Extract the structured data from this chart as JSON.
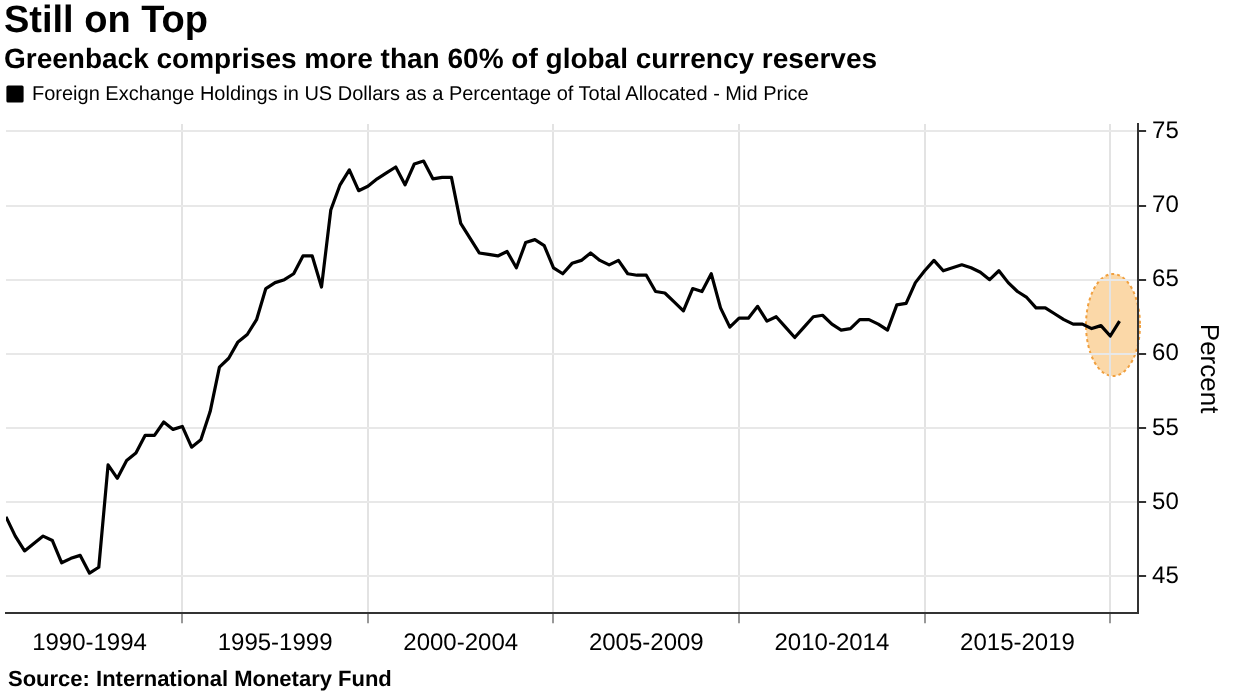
{
  "chart_data": {
    "type": "line",
    "title": "Still on Top",
    "subtitle": "Greenback comprises more than 60% of global currency reserves",
    "ylabel": "Percent",
    "annotations": [
      "Source: International Monetary Fund"
    ],
    "categories": [
      null,
      null,
      null,
      null,
      null,
      null,
      null,
      null,
      null,
      "1990-1994",
      null,
      null,
      null,
      null,
      null,
      null,
      null,
      null,
      null,
      null,
      null,
      null,
      null,
      null,
      null,
      null,
      null,
      null,
      null,
      "1995-1999",
      null,
      null,
      null,
      null,
      null,
      null,
      null,
      null,
      null,
      null,
      null,
      null,
      null,
      null,
      null,
      null,
      null,
      null,
      null,
      "2000-2004",
      null,
      null,
      null,
      null,
      null,
      null,
      null,
      null,
      null,
      null,
      null,
      null,
      null,
      null,
      null,
      null,
      null,
      null,
      null,
      "2005-2009",
      null,
      null,
      null,
      null,
      null,
      null,
      null,
      null,
      null,
      null,
      null,
      null,
      null,
      null,
      null,
      null,
      null,
      null,
      null,
      "2010-2014",
      null,
      null,
      null,
      null,
      null,
      null,
      null,
      null,
      null,
      null,
      null,
      null,
      null,
      null,
      null,
      null,
      null,
      null,
      null,
      "2015-2019",
      null,
      null,
      null,
      null,
      null,
      null,
      null,
      null,
      null,
      null,
      null,
      null,
      null
    ],
    "series": [
      {
        "name": "Foreign Exchange Holdings in US Dollars as a Percentage of Total Allocated - Mid Price",
        "color": "#000000",
        "values": [
          49.0,
          47.7,
          46.7,
          47.2,
          47.7,
          47.4,
          45.9,
          46.2,
          46.4,
          45.2,
          45.6,
          52.5,
          51.6,
          52.8,
          53.3,
          54.5,
          54.5,
          55.4,
          54.9,
          55.1,
          53.7,
          54.2,
          56.1,
          59.1,
          59.7,
          60.8,
          61.3,
          62.3,
          64.4,
          64.8,
          65.0,
          65.4,
          66.6,
          66.6,
          64.5,
          69.7,
          71.4,
          72.4,
          71.0,
          71.3,
          71.8,
          72.2,
          72.6,
          71.4,
          72.8,
          73.0,
          71.8,
          71.9,
          71.9,
          68.8,
          67.8,
          66.8,
          66.7,
          66.6,
          66.9,
          65.8,
          67.5,
          67.7,
          67.3,
          65.8,
          65.4,
          66.1,
          66.3,
          66.8,
          66.3,
          66.0,
          66.3,
          65.4,
          65.3,
          65.3,
          64.2,
          64.1,
          63.5,
          62.9,
          64.4,
          64.2,
          65.4,
          63.1,
          61.8,
          62.4,
          62.4,
          63.2,
          62.2,
          62.5,
          61.8,
          61.1,
          61.8,
          62.5,
          62.6,
          62.0,
          61.6,
          61.7,
          62.3,
          62.3,
          62.0,
          61.6,
          63.3,
          63.4,
          64.8,
          65.6,
          66.3,
          65.6,
          65.8,
          66.0,
          65.8,
          65.5,
          65.0,
          65.6,
          64.8,
          64.2,
          63.8,
          63.1,
          63.1,
          62.7,
          62.3,
          62.0,
          62.0,
          61.7,
          61.9,
          61.2,
          62.2,
          null,
          null
        ]
      }
    ],
    "ylim": [
      42.5,
      75.5
    ],
    "yticks": [
      45,
      50,
      55,
      60,
      65,
      70,
      75
    ],
    "grid": true,
    "legend": "top left",
    "marker": "none",
    "line_style": "solid"
  }
}
